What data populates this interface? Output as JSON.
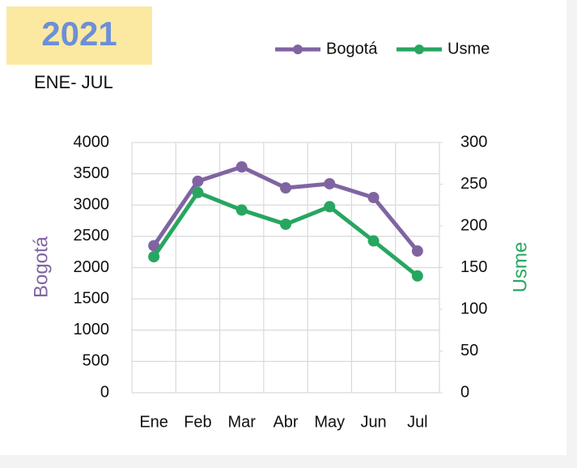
{
  "chart_data": {
    "type": "line",
    "title": "2021",
    "subtitle": "ENE- JUL",
    "categories": [
      "Ene",
      "Feb",
      "Mar",
      "Abr",
      "May",
      "Jun",
      "Jul"
    ],
    "series": [
      {
        "name": "Bogotá",
        "color": "#8064a2",
        "values": [
          2350,
          3380,
          3610,
          3275,
          3340,
          3120,
          2265
        ]
      },
      {
        "name": "Usme",
        "color": "#27a660",
        "axis": "y2",
        "values": [
          163,
          240,
          219,
          202,
          223,
          182,
          140
        ]
      }
    ],
    "ylabel": "Bogotá",
    "y2label": "Usme",
    "ylim": [
      0,
      4000
    ],
    "yticks": [
      0,
      500,
      1000,
      1500,
      2000,
      2500,
      3000,
      3500,
      4000
    ],
    "y2lim": [
      0,
      300
    ],
    "y2ticks": [
      0,
      50,
      100,
      150,
      200,
      250,
      300
    ],
    "grid": true,
    "legend": "top-right"
  }
}
